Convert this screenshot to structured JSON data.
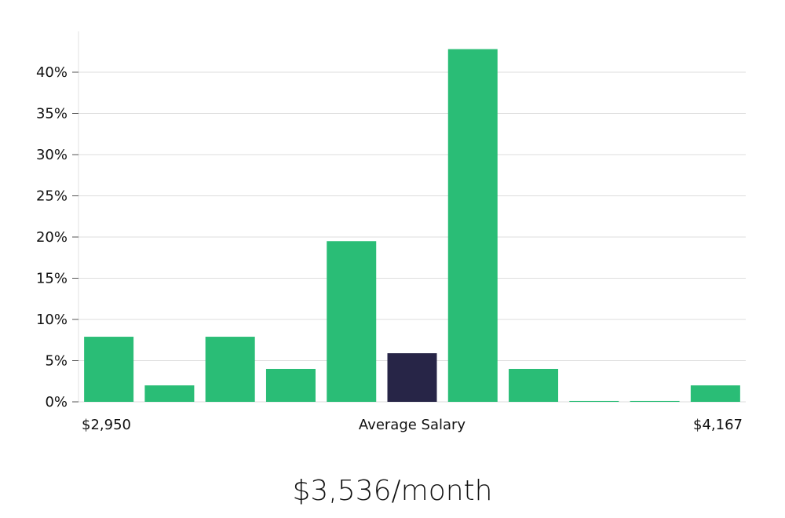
{
  "chart_data": {
    "type": "bar",
    "title": "",
    "xlabel": "Average Salary",
    "ylabel": "",
    "x_start_label": "$2,950",
    "x_end_label": "$4,167",
    "ylim": [
      0,
      45
    ],
    "y_ticks": [
      0,
      5,
      10,
      15,
      20,
      25,
      30,
      35,
      40
    ],
    "y_tick_labels": [
      "0%",
      "5%",
      "10%",
      "15%",
      "20%",
      "25%",
      "30%",
      "35%",
      "40%"
    ],
    "values": [
      7.9,
      2.0,
      7.9,
      4.0,
      19.5,
      5.9,
      42.8,
      4.0,
      0.1,
      0.1,
      2.0
    ],
    "highlight_index": 5,
    "grid": true,
    "colors": {
      "bar": "#2abd76",
      "highlight": "#272547",
      "grid": "#dddddd",
      "axis": "#e0e0e0"
    }
  },
  "headline": "$3,536/month"
}
